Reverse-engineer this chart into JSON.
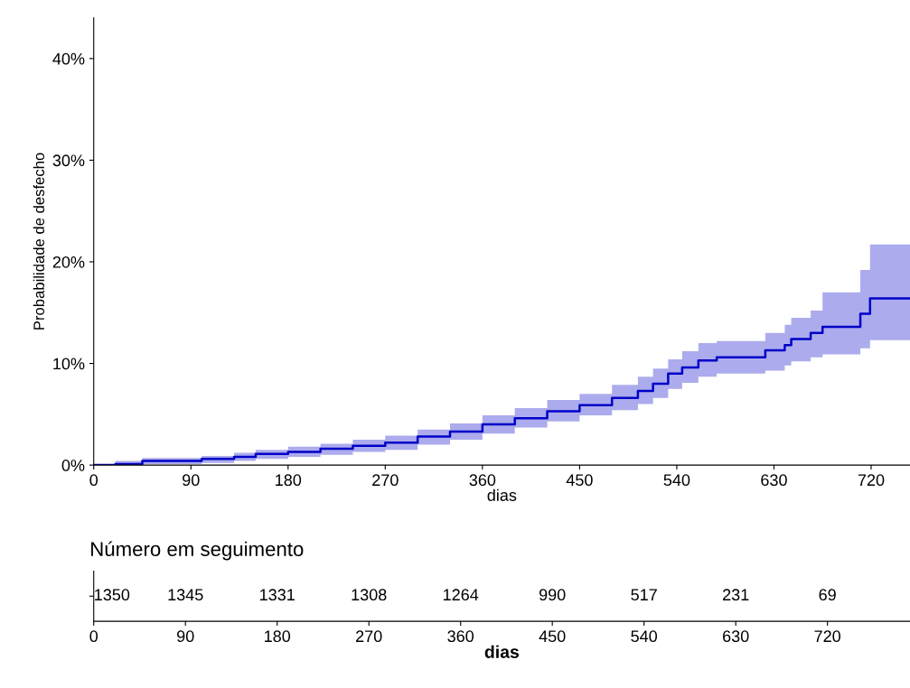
{
  "chart_data": [
    {
      "type": "step",
      "xlabel": "dias",
      "ylabel": "Probabilidade de desfecho",
      "x": [
        0,
        20,
        45,
        100,
        130,
        150,
        180,
        210,
        240,
        270,
        300,
        330,
        360,
        390,
        420,
        450,
        480,
        504,
        518,
        532,
        545,
        560,
        577,
        622,
        640,
        646,
        664,
        675,
        710,
        719,
        756
      ],
      "series": [
        {
          "color": "#0000c8",
          "values": [
            0,
            0.1,
            0.4,
            0.6,
            0.8,
            1.1,
            1.3,
            1.6,
            1.9,
            2.2,
            2.8,
            3.3,
            4.0,
            4.6,
            5.3,
            5.9,
            6.6,
            7.3,
            8.0,
            9.0,
            9.6,
            10.3,
            10.6,
            11.3,
            11.8,
            12.4,
            13.0,
            13.6,
            14.9,
            16.4,
            16.4
          ],
          "lower": [
            0,
            0,
            0.1,
            0.2,
            0.4,
            0.6,
            0.8,
            1.0,
            1.3,
            1.5,
            2.0,
            2.5,
            3.1,
            3.7,
            4.3,
            4.9,
            5.4,
            6.0,
            6.6,
            7.5,
            8.1,
            8.7,
            9.0,
            9.3,
            9.8,
            10.2,
            10.6,
            10.9,
            11.5,
            12.3,
            12.3
          ],
          "upper": [
            0,
            0.4,
            0.7,
            0.9,
            1.2,
            1.5,
            1.8,
            2.1,
            2.5,
            2.9,
            3.5,
            4.1,
            4.9,
            5.6,
            6.4,
            7.0,
            7.9,
            8.7,
            9.5,
            10.4,
            11.2,
            12.0,
            12.2,
            13.0,
            13.8,
            14.5,
            15.2,
            17.0,
            19.2,
            21.7,
            21.7
          ]
        }
      ],
      "xlim": [
        0,
        756
      ],
      "xticks": [
        0,
        90,
        180,
        270,
        360,
        450,
        540,
        630,
        720
      ],
      "ylim": [
        0,
        44
      ],
      "yticks": [
        {
          "value": 0,
          "label": "0%"
        },
        {
          "value": 10,
          "label": "10%"
        },
        {
          "value": 20,
          "label": "20%"
        },
        {
          "value": 30,
          "label": "30%"
        },
        {
          "value": 40,
          "label": "40%"
        }
      ],
      "grid": false,
      "legend": false
    },
    {
      "type": "heatmap",
      "title": "Número em seguimento",
      "xlabel": "dias",
      "categories": [
        "0",
        "90",
        "180",
        "270",
        "360",
        "450",
        "540",
        "630",
        "720"
      ],
      "y_categories": [
        null
      ],
      "cells": [
        [
          1350,
          1345,
          1331,
          1308,
          1264,
          990,
          517,
          231,
          69
        ]
      ],
      "data_labels": true
    }
  ]
}
